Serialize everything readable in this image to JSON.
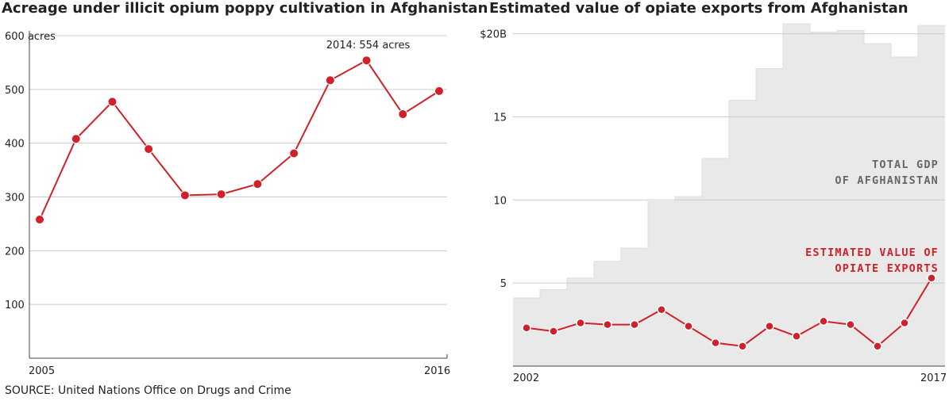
{
  "titles": {
    "left": "Acreage under illicit opium poppy cultivation in Afghanistan",
    "right": "Estimated value of opiate exports from Afghanistan"
  },
  "source": "SOURCE: United Nations Office on Drugs and Crime",
  "chart_data": [
    {
      "type": "line",
      "title": "Acreage under illicit opium poppy cultivation in Afghanistan",
      "x": [
        2005,
        2006,
        2007,
        2008,
        2009,
        2010,
        2011,
        2012,
        2013,
        2014,
        2015,
        2016
      ],
      "series": [
        {
          "values": [
            258,
            408,
            477,
            389,
            303,
            305,
            324,
            381,
            517,
            554,
            454,
            497
          ]
        }
      ],
      "ylim": [
        0,
        600
      ],
      "yticks": [
        100,
        200,
        300,
        400,
        500,
        600
      ],
      "ytick_labels": [
        "100",
        "200",
        "300",
        "400",
        "500",
        "600 acres"
      ],
      "xtick_labels": [
        "2005",
        "2016"
      ],
      "annotation": {
        "text": "2014: 554 acres",
        "x": 2014,
        "y": 554
      },
      "grid": true,
      "colors": {
        "line": "#d0212b",
        "grid": "#cccccc"
      }
    },
    {
      "type": "area",
      "title": "Estimated value of opiate exports from Afghanistan",
      "x": [
        2002,
        2003,
        2004,
        2005,
        2006,
        2007,
        2008,
        2009,
        2010,
        2011,
        2012,
        2013,
        2014,
        2015,
        2016,
        2017
      ],
      "series": [
        {
          "name": "TOTAL GDP OF AFGHANISTAN",
          "style": "step-area",
          "values": [
            4.1,
            4.6,
            5.3,
            6.3,
            7.1,
            9.9,
            10.2,
            12.5,
            16.0,
            17.9,
            20.6,
            20.1,
            20.2,
            19.4,
            18.6,
            20.5
          ]
        },
        {
          "name": "ESTIMATED VALUE OF OPIATE EXPORTS",
          "style": "line",
          "values": [
            2.3,
            2.1,
            2.6,
            2.5,
            2.5,
            3.4,
            2.4,
            1.4,
            1.2,
            2.4,
            1.8,
            2.7,
            2.5,
            1.2,
            2.6,
            5.3
          ]
        }
      ],
      "ylim": [
        0,
        20.6
      ],
      "yticks": [
        5,
        10,
        15,
        20
      ],
      "ytick_labels": [
        "5",
        "10",
        "15",
        "$20B"
      ],
      "xtick_labels": [
        "2002",
        "2017"
      ],
      "labels": {
        "gdp": [
          "TOTAL GDP",
          "OF AFGHANISTAN"
        ],
        "opiate": [
          "ESTIMATED VALUE OF",
          "OPIATE EXPORTS"
        ]
      },
      "grid": true,
      "colors": {
        "area": "#e9e9e9",
        "line": "#d0212b",
        "grid": "#cccccc",
        "gdp_label": "#666666"
      }
    }
  ]
}
